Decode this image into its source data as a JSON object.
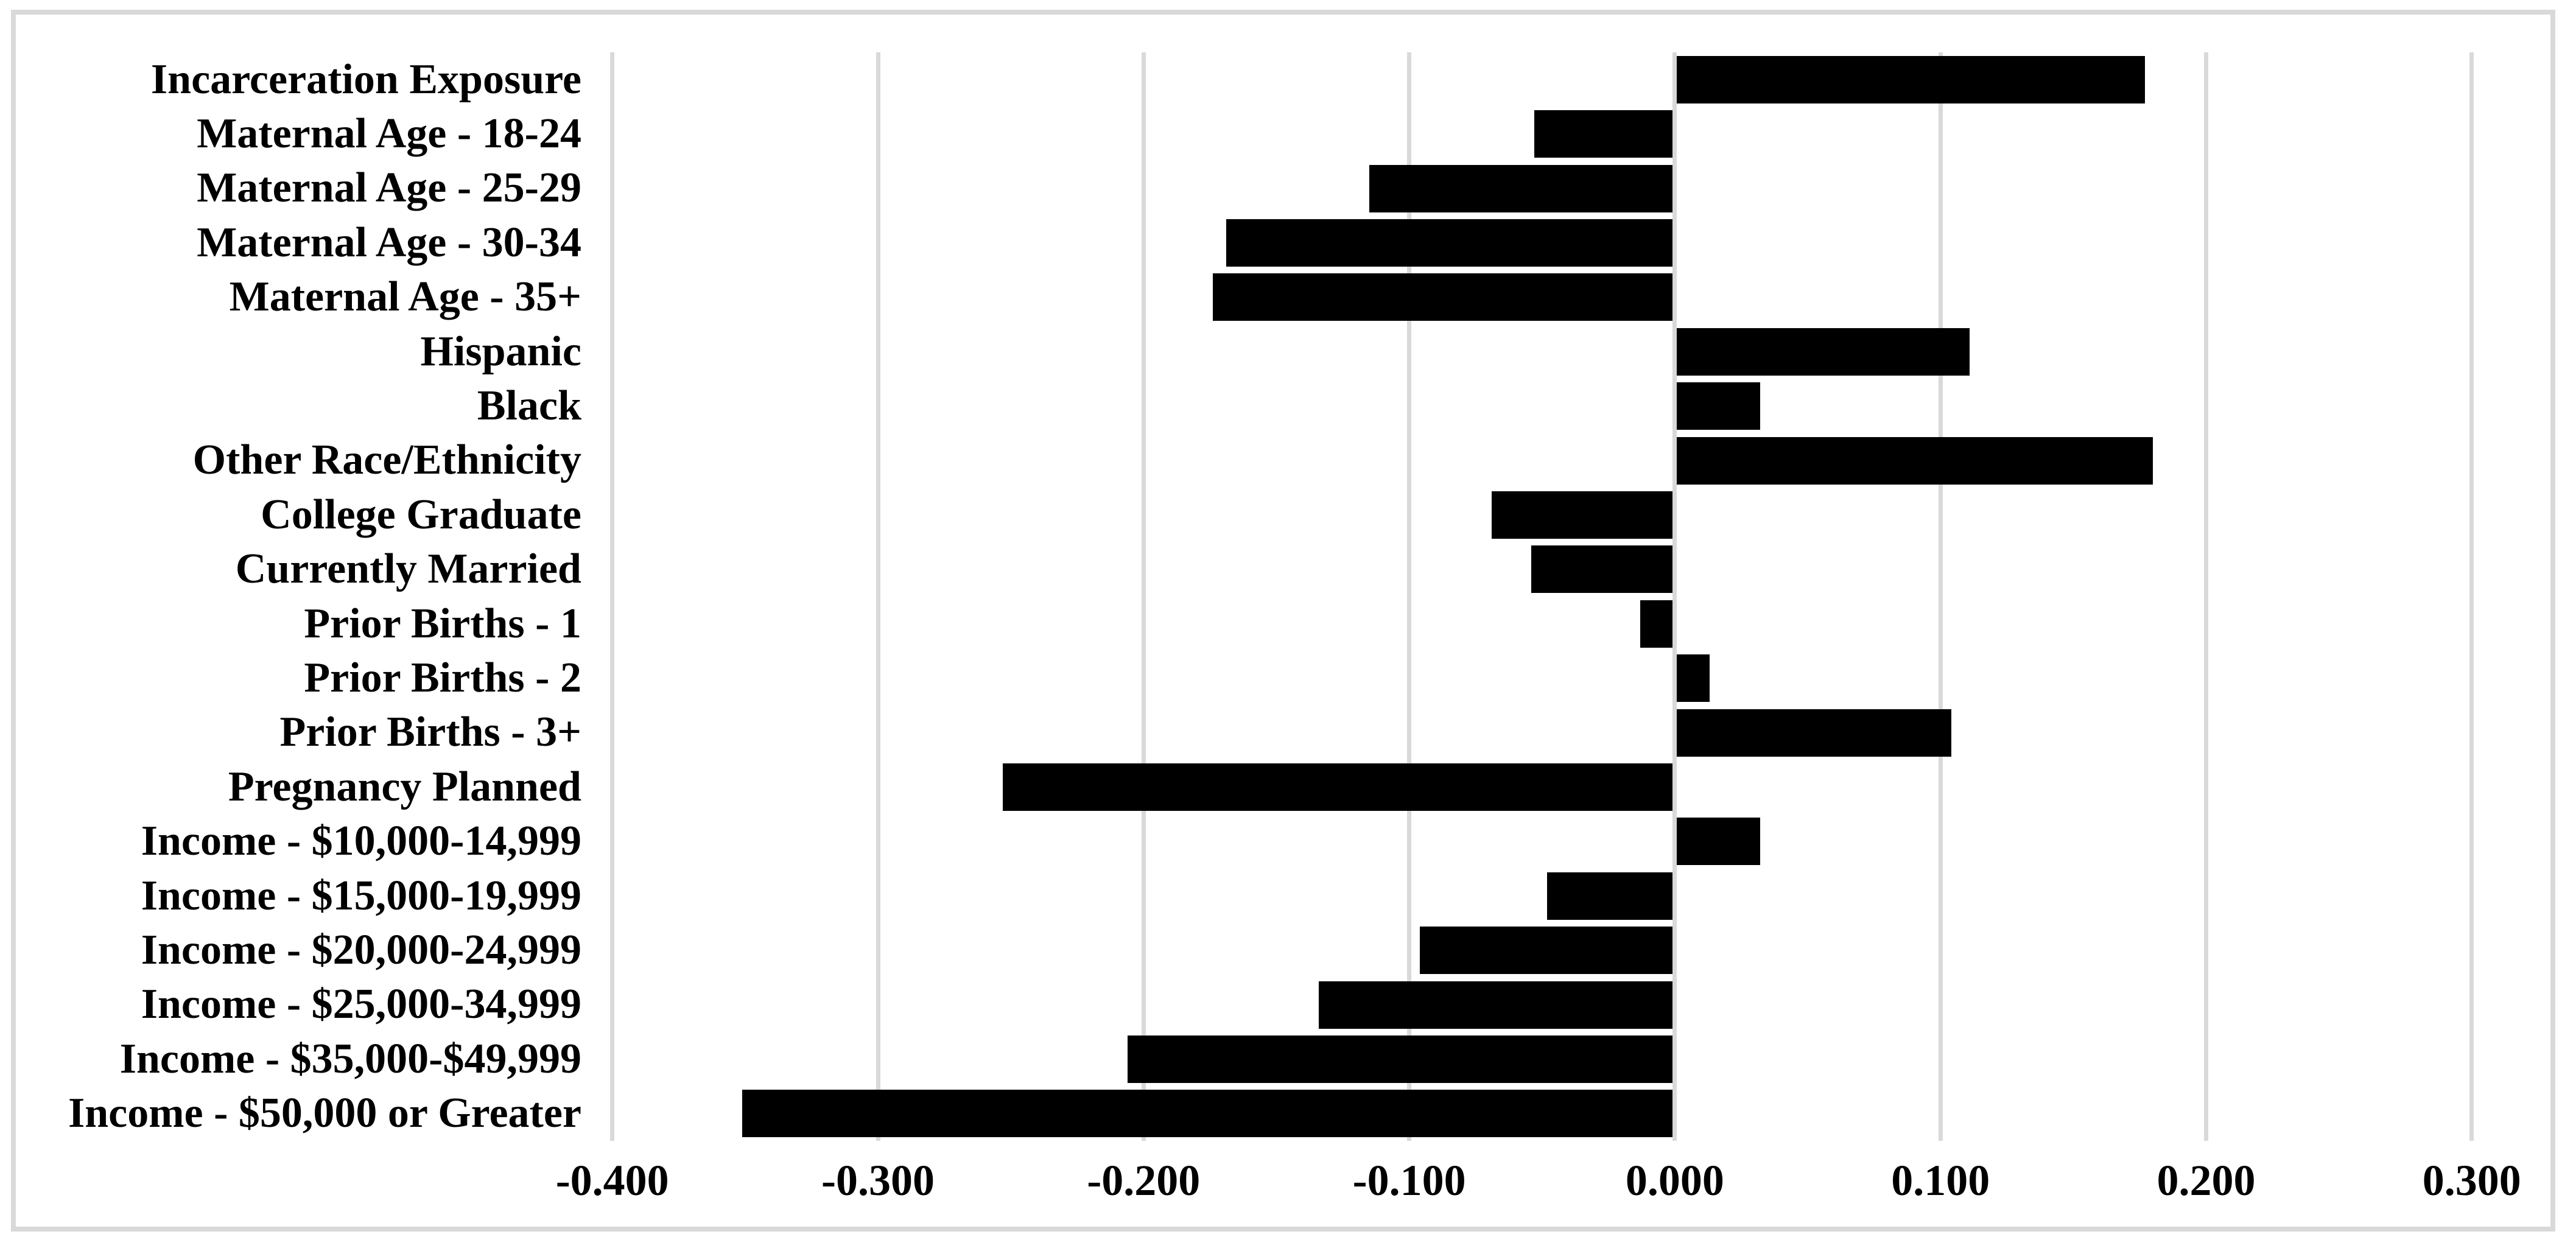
{
  "figure": {
    "background": "#ffffff",
    "frame_border_color": "#d9d9d9",
    "text_color": "#000000"
  },
  "chart_data": {
    "type": "bar",
    "orientation": "horizontal",
    "title": "",
    "xlabel": "",
    "ylabel": "",
    "legend": false,
    "grid": true,
    "bar_color": "#000000",
    "gridline_color": "#d9d9d9",
    "xlim": [
      -0.405,
      0.328
    ],
    "x_ticks": [
      {
        "value": -0.4,
        "label": "-0.400"
      },
      {
        "value": -0.3,
        "label": "-0.300"
      },
      {
        "value": -0.2,
        "label": "-0.200"
      },
      {
        "value": -0.1,
        "label": "-0.100"
      },
      {
        "value": 0.0,
        "label": "0.000"
      },
      {
        "value": 0.1,
        "label": "0.100"
      },
      {
        "value": 0.2,
        "label": "0.200"
      },
      {
        "value": 0.3,
        "label": "0.300"
      }
    ],
    "categories": [
      "Incarceration Exposure",
      "Maternal Age - 18-24",
      "Maternal Age - 25-29",
      "Maternal Age - 30-34",
      "Maternal Age - 35+",
      "Hispanic",
      "Black",
      "Other Race/Ethnicity",
      "College Graduate",
      "Currently Married",
      "Prior Births - 1",
      "Prior Births - 2",
      "Prior Births - 3+",
      "Pregnancy Planned",
      "Income - $10,000-14,999",
      "Income - $15,000-19,999",
      "Income - $20,000-24,999",
      "Income - $25,000-34,999",
      "Income - $35,000-$49,999",
      "Income - $50,000 or Greater"
    ],
    "values": [
      0.177,
      -0.053,
      -0.115,
      -0.169,
      -0.174,
      0.111,
      0.032,
      0.18,
      -0.069,
      -0.054,
      -0.013,
      0.013,
      0.104,
      -0.253,
      0.032,
      -0.048,
      -0.096,
      -0.134,
      -0.206,
      -0.351
    ]
  }
}
